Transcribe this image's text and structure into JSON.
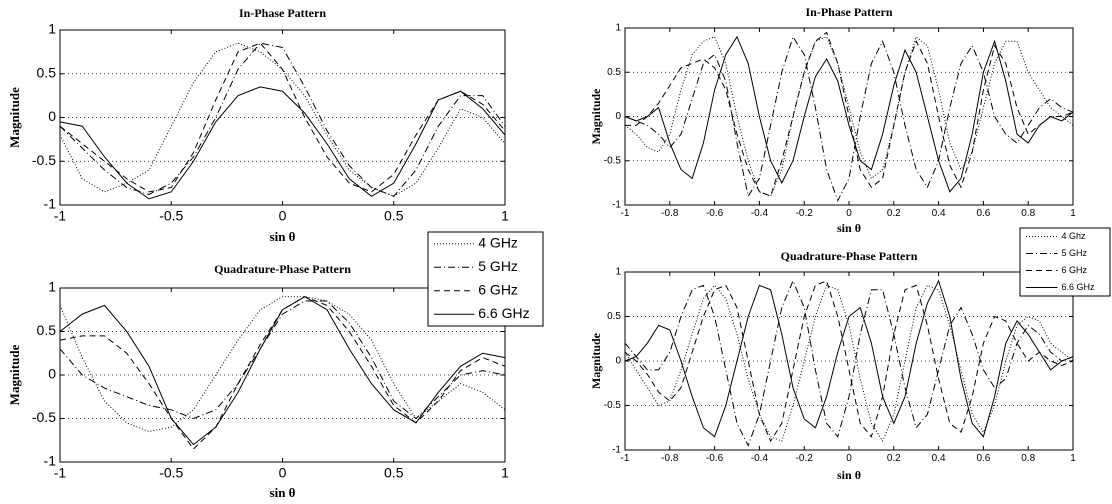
{
  "chart_data": [
    {
      "type": "line",
      "title": "In-Phase Pattern",
      "x_label": "sin θ",
      "y_label": "Magnitude",
      "x": [
        -1,
        -0.9,
        -0.8,
        -0.7,
        -0.6,
        -0.5,
        -0.4,
        -0.3,
        -0.2,
        -0.1,
        0,
        0.1,
        0.2,
        0.3,
        0.4,
        0.5,
        0.6,
        0.7,
        0.8,
        0.9,
        1
      ],
      "xlim": [
        -1,
        1
      ],
      "ylim": [
        -1,
        1
      ],
      "xticks": [
        -1,
        -0.5,
        0,
        0.5,
        1
      ],
      "yticks": [
        -1,
        -0.5,
        0,
        0.5,
        1
      ],
      "grid": "y",
      "legend": false,
      "series": [
        {
          "color": "#000000",
          "dash": "dotted",
          "values": [
            -0.2,
            -0.7,
            -0.85,
            -0.75,
            -0.6,
            -0.1,
            0.4,
            0.75,
            0.85,
            0.75,
            0.55,
            0.25,
            -0.2,
            -0.6,
            -0.8,
            -0.9,
            -0.75,
            -0.35,
            0.1,
            0,
            -0.3
          ]
        },
        {
          "color": "#000000",
          "dash": "dashdot",
          "values": [
            -0.1,
            -0.35,
            -0.6,
            -0.8,
            -0.88,
            -0.75,
            -0.45,
            0,
            0.55,
            0.85,
            0.8,
            0.35,
            -0.15,
            -0.55,
            -0.8,
            -0.9,
            -0.6,
            -0.1,
            0.25,
            0.25,
            -0.1
          ]
        },
        {
          "color": "#000000",
          "dash": "dashed",
          "values": [
            -0.1,
            -0.3,
            -0.5,
            -0.7,
            -0.85,
            -0.8,
            -0.4,
            0.2,
            0.75,
            0.85,
            0.55,
            0,
            -0.45,
            -0.75,
            -0.85,
            -0.65,
            -0.2,
            0.2,
            0.3,
            0.15,
            -0.15
          ]
        },
        {
          "color": "#000000",
          "dash": "solid",
          "values": [
            -0.05,
            -0.1,
            -0.45,
            -0.75,
            -0.93,
            -0.85,
            -0.5,
            -0.05,
            0.25,
            0.35,
            0.3,
            0.05,
            -0.3,
            -0.7,
            -0.9,
            -0.75,
            -0.3,
            0.2,
            0.3,
            0.1,
            -0.2
          ]
        }
      ]
    },
    {
      "type": "line",
      "title": "Quadrature-Phase Pattern",
      "x_label": "sin θ",
      "y_label": "Magnitude",
      "x": [
        -1,
        -0.9,
        -0.8,
        -0.7,
        -0.6,
        -0.5,
        -0.4,
        -0.3,
        -0.2,
        -0.1,
        0,
        0.1,
        0.2,
        0.3,
        0.4,
        0.5,
        0.6,
        0.7,
        0.8,
        0.9,
        1
      ],
      "xlim": [
        -1,
        1
      ],
      "ylim": [
        -1,
        1
      ],
      "xticks": [
        -1,
        -0.5,
        0,
        0.5,
        1
      ],
      "yticks": [
        -1,
        -0.5,
        0,
        0.5,
        1
      ],
      "grid": "y",
      "legend": "top-right-outside",
      "series": [
        {
          "name": "4 GHz",
          "color": "#000000",
          "dash": "dotted",
          "values": [
            0.8,
            0.2,
            -0.3,
            -0.55,
            -0.65,
            -0.6,
            -0.4,
            0,
            0.4,
            0.75,
            0.9,
            0.9,
            0.85,
            0.7,
            0.4,
            -0.1,
            -0.5,
            -0.3,
            -0.1,
            -0.2,
            -0.4
          ]
        },
        {
          "name": "5 GHz",
          "color": "#000000",
          "dash": "dashdot",
          "values": [
            0.3,
            0,
            -0.15,
            -0.25,
            -0.35,
            -0.4,
            -0.5,
            -0.4,
            -0.1,
            0.3,
            0.7,
            0.85,
            0.85,
            0.6,
            0.2,
            -0.3,
            -0.5,
            -0.25,
            0,
            0.05,
            0
          ]
        },
        {
          "name": "6 GHz",
          "color": "#000000",
          "dash": "dashed",
          "values": [
            0.4,
            0.45,
            0.45,
            0.25,
            -0.1,
            -0.5,
            -0.85,
            -0.6,
            -0.1,
            0.35,
            0.75,
            0.9,
            0.8,
            0.5,
            0.1,
            -0.35,
            -0.55,
            -0.3,
            0.05,
            0.2,
            0.1
          ]
        },
        {
          "name": "6.6 GHz",
          "color": "#000000",
          "dash": "solid",
          "values": [
            0.5,
            0.7,
            0.8,
            0.5,
            0.1,
            -0.5,
            -0.8,
            -0.6,
            -0.2,
            0.3,
            0.75,
            0.9,
            0.75,
            0.3,
            -0.1,
            -0.4,
            -0.55,
            -0.2,
            0.1,
            0.25,
            0.2
          ]
        }
      ]
    },
    {
      "type": "line",
      "title": "In-Phase Pattern",
      "x_label": "sin θ",
      "y_label": "Magnitude",
      "x": [
        -1,
        -0.95,
        -0.9,
        -0.85,
        -0.8,
        -0.75,
        -0.7,
        -0.65,
        -0.6,
        -0.55,
        -0.5,
        -0.45,
        -0.4,
        -0.35,
        -0.3,
        -0.25,
        -0.2,
        -0.15,
        -0.1,
        -0.05,
        0,
        0.05,
        0.1,
        0.15,
        0.2,
        0.25,
        0.3,
        0.35,
        0.4,
        0.45,
        0.5,
        0.55,
        0.6,
        0.65,
        0.7,
        0.75,
        0.8,
        0.85,
        0.9,
        0.95,
        1
      ],
      "xlim": [
        -1,
        1
      ],
      "ylim": [
        -1,
        1
      ],
      "xticks": [
        -1,
        -0.8,
        -0.6,
        -0.4,
        -0.2,
        0,
        0.2,
        0.4,
        0.6,
        0.8,
        1
      ],
      "yticks": [
        -1,
        -0.5,
        0,
        0.5,
        1
      ],
      "grid": "y",
      "legend": false,
      "series": [
        {
          "color": "#000000",
          "dash": "dotted",
          "values": [
            -0.1,
            -0.2,
            -0.35,
            -0.4,
            -0.2,
            0.3,
            0.7,
            0.85,
            0.9,
            0.6,
            0,
            -0.5,
            -0.85,
            -0.9,
            -0.6,
            0,
            0.5,
            0.85,
            0.9,
            0.6,
            0.1,
            -0.4,
            -0.7,
            -0.6,
            -0.1,
            0.5,
            0.9,
            0.8,
            0.3,
            -0.3,
            -0.6,
            -0.4,
            0.1,
            0.6,
            0.85,
            0.85,
            0.5,
            0.3,
            0.1,
            0,
            -0.1
          ]
        },
        {
          "color": "#000000",
          "dash": "dashdot",
          "values": [
            0,
            -0.05,
            -0.1,
            -0.2,
            -0.35,
            -0.2,
            0.2,
            0.6,
            0.7,
            0.4,
            -0.3,
            -0.9,
            -0.7,
            -0.1,
            0.5,
            0.9,
            0.7,
            0.1,
            -0.6,
            -0.95,
            -0.7,
            0,
            0.6,
            0.85,
            0.5,
            -0.1,
            -0.6,
            -0.8,
            -0.5,
            0.1,
            0.6,
            0.8,
            0.5,
            0,
            -0.2,
            -0.3,
            -0.1,
            0.1,
            0.2,
            0.1,
            0.05
          ]
        },
        {
          "color": "#000000",
          "dash": "dashed",
          "values": [
            -0.1,
            -0.1,
            0,
            0.15,
            0.35,
            0.55,
            0.6,
            0.65,
            0.55,
            0.3,
            -0.2,
            -0.6,
            -0.85,
            -0.9,
            -0.5,
            0,
            0.5,
            0.85,
            0.95,
            0.6,
            0,
            -0.6,
            -0.8,
            -0.7,
            -0.1,
            0.5,
            0.85,
            0.6,
            0,
            -0.55,
            -0.8,
            -0.4,
            0.3,
            0.8,
            0.6,
            0.1,
            -0.2,
            -0.1,
            0,
            0,
            0.05
          ]
        },
        {
          "color": "#000000",
          "dash": "solid",
          "values": [
            0,
            -0.05,
            0,
            0.1,
            -0.3,
            -0.6,
            -0.7,
            -0.3,
            0.3,
            0.7,
            0.9,
            0.6,
            0,
            -0.5,
            -0.75,
            -0.5,
            0,
            0.45,
            0.65,
            0.4,
            -0.1,
            -0.5,
            -0.6,
            -0.2,
            0.35,
            0.75,
            0.5,
            0,
            -0.5,
            -0.85,
            -0.7,
            -0.2,
            0.5,
            0.85,
            0.4,
            -0.2,
            -0.3,
            -0.1,
            0,
            -0.05,
            0.05
          ]
        }
      ]
    },
    {
      "type": "line",
      "title": "Quadrature-Phase Pattern",
      "x_label": "sin θ",
      "y_label": "Magnitude",
      "x": [
        -1,
        -0.95,
        -0.9,
        -0.85,
        -0.8,
        -0.75,
        -0.7,
        -0.65,
        -0.6,
        -0.55,
        -0.5,
        -0.45,
        -0.4,
        -0.35,
        -0.3,
        -0.25,
        -0.2,
        -0.15,
        -0.1,
        -0.05,
        0,
        0.05,
        0.1,
        0.15,
        0.2,
        0.25,
        0.3,
        0.35,
        0.4,
        0.45,
        0.5,
        0.55,
        0.6,
        0.65,
        0.7,
        0.75,
        0.8,
        0.85,
        0.9,
        0.95,
        1
      ],
      "xlim": [
        -1,
        1
      ],
      "ylim": [
        -1,
        1
      ],
      "xticks": [
        -1,
        -0.8,
        -0.6,
        -0.4,
        -0.2,
        0,
        0.2,
        0.4,
        0.6,
        0.8,
        1
      ],
      "yticks": [
        -1,
        -0.5,
        0,
        0.5,
        1
      ],
      "grid": "y",
      "legend": "top-right-outside",
      "series": [
        {
          "name": "4 Ghz",
          "color": "#000000",
          "dash": "dotted",
          "values": [
            0.1,
            -0.1,
            -0.3,
            -0.5,
            -0.45,
            -0.1,
            0.3,
            0.7,
            0.85,
            0.7,
            0.3,
            -0.2,
            -0.6,
            -0.85,
            -0.9,
            -0.5,
            0,
            0.5,
            0.85,
            0.8,
            0.4,
            -0.2,
            -0.7,
            -0.9,
            -0.6,
            0,
            0.6,
            0.85,
            0.8,
            0.4,
            -0.1,
            -0.6,
            -0.8,
            -0.5,
            0,
            0.4,
            0.5,
            0.45,
            0.2,
            0.1,
            0
          ]
        },
        {
          "name": "5 GHz",
          "color": "#000000",
          "dash": "dashdot",
          "values": [
            0.2,
            0.05,
            -0.1,
            -0.1,
            0.1,
            0.5,
            0.8,
            0.85,
            0.5,
            -0.1,
            -0.7,
            -0.95,
            -0.6,
            0,
            0.6,
            0.9,
            0.6,
            -0.1,
            -0.7,
            -0.85,
            -0.4,
            0.3,
            0.8,
            0.8,
            0.3,
            -0.3,
            -0.75,
            -0.6,
            -0.1,
            0.4,
            0.6,
            0.3,
            -0.1,
            -0.3,
            -0.2,
            0.2,
            0.4,
            0.3,
            0.1,
            0,
            0.05
          ]
        },
        {
          "name": "6 GHz",
          "color": "#000000",
          "dash": "dashed",
          "values": [
            0.1,
            0,
            -0.15,
            -0.35,
            -0.45,
            -0.3,
            0.1,
            0.5,
            0.8,
            0.85,
            0.6,
            0,
            -0.6,
            -0.9,
            -0.7,
            -0.1,
            0.5,
            0.85,
            0.9,
            0.5,
            -0.1,
            -0.7,
            -0.85,
            -0.4,
            0.3,
            0.8,
            0.85,
            0.4,
            -0.2,
            -0.7,
            -0.8,
            -0.4,
            0.2,
            0.5,
            0.45,
            0.2,
            0,
            0.1,
            0,
            -0.05,
            0
          ]
        },
        {
          "name": "6.6 GHz",
          "color": "#000000",
          "dash": "solid",
          "values": [
            0,
            0.05,
            0.2,
            0.4,
            0.35,
            0,
            -0.4,
            -0.75,
            -0.85,
            -0.5,
            0,
            0.5,
            0.85,
            0.8,
            0.3,
            -0.3,
            -0.65,
            -0.75,
            -0.4,
            0.1,
            0.5,
            0.6,
            0.2,
            -0.4,
            -0.7,
            -0.4,
            0.2,
            0.65,
            0.9,
            0.5,
            -0.2,
            -0.7,
            -0.85,
            -0.4,
            0.2,
            0.45,
            0.3,
            0.1,
            -0.1,
            0,
            0.05
          ]
        }
      ]
    }
  ]
}
